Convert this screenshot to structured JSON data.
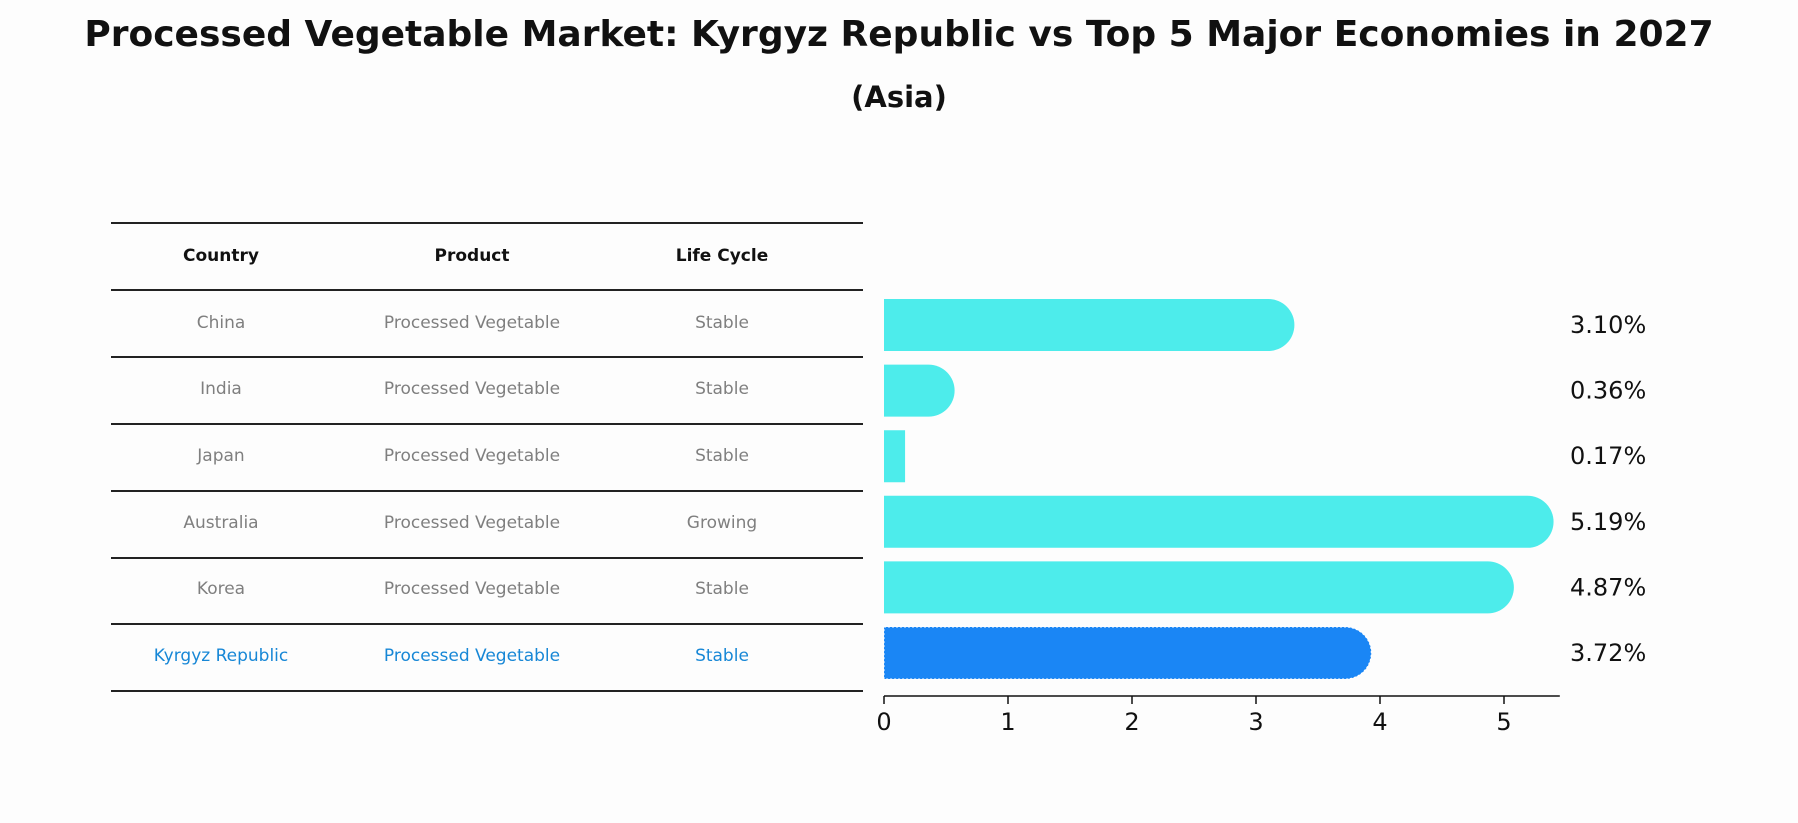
{
  "title": "Processed Vegetable Market: Kyrgyz Republic vs Top 5 Major Economies in 2027",
  "subtitle": "(Asia)",
  "table": {
    "headers": [
      "Country",
      "Product",
      "Life Cycle"
    ],
    "rows": [
      {
        "country": "China",
        "product": "Processed Vegetable",
        "life_cycle": "Stable"
      },
      {
        "country": "India",
        "product": "Processed Vegetable",
        "life_cycle": "Stable"
      },
      {
        "country": "Japan",
        "product": "Processed Vegetable",
        "life_cycle": "Stable"
      },
      {
        "country": "Australia",
        "product": "Processed Vegetable",
        "life_cycle": "Growing"
      },
      {
        "country": "Korea",
        "product": "Processed Vegetable",
        "life_cycle": "Stable"
      },
      {
        "country": "Kyrgyz Republic",
        "product": "Processed Vegetable",
        "life_cycle": "Stable"
      }
    ]
  },
  "colors": {
    "bar": "#4deceb",
    "highlight_bar": "#1a86f5",
    "highlight_text": "#1787d6",
    "muted_text": "#7f7f7f"
  },
  "chart_data": {
    "type": "bar",
    "orientation": "horizontal",
    "categories": [
      "China",
      "India",
      "Japan",
      "Australia",
      "Korea",
      "Kyrgyz Republic"
    ],
    "values": [
      3.1,
      0.36,
      0.17,
      5.19,
      4.87,
      3.72
    ],
    "value_labels": [
      "3.10%",
      "0.36%",
      "0.17%",
      "5.19%",
      "4.87%",
      "3.72%"
    ],
    "highlight": "Kyrgyz Republic",
    "xlim": [
      0,
      5.45
    ],
    "xticks": [
      0,
      1,
      2,
      3,
      4,
      5
    ],
    "xlabel": "",
    "ylabel": ""
  }
}
